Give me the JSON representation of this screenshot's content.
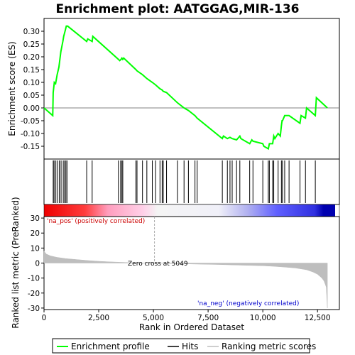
{
  "chart_data": [
    {
      "type": "line",
      "title": "Enrichment plot: AATGGAG,MIR-136",
      "ylabel": "Enrichment score (ES)",
      "ylim": [
        -0.2,
        0.35
      ],
      "yticks": [
        0.3,
        0.25,
        0.2,
        0.15,
        0.1,
        0.05,
        0.0,
        -0.05,
        -0.1,
        -0.15
      ],
      "ytick_labels": [
        "0.30",
        "0.25",
        "0.20",
        "0.15",
        "0.10",
        "0.05",
        "0.00",
        "-0.05",
        "-0.10",
        "-0.15"
      ],
      "xlim": [
        0,
        13500
      ],
      "grid": false,
      "series": [
        {
          "name": "Enrichment profile",
          "color": "#00ff00",
          "x": [
            0,
            400,
            420,
            470,
            530,
            600,
            680,
            770,
            860,
            900,
            960,
            1020,
            1080,
            1950,
            2000,
            2200,
            2230,
            3400,
            3460,
            3520,
            3560,
            3600,
            3640,
            4200,
            4250,
            4500,
            4700,
            4950,
            5100,
            5300,
            5400,
            5450,
            5600,
            6100,
            6400,
            6600,
            6900,
            7000,
            8150,
            8200,
            8380,
            8500,
            8600,
            8800,
            8950,
            9000,
            9400,
            9500,
            9550,
            10000,
            10050,
            10250,
            10300,
            10450,
            10500,
            10550,
            10700,
            10800,
            10850,
            10880,
            10900,
            11000,
            11200,
            11700,
            11750,
            11950,
            12000,
            12400,
            12450,
            12950
          ],
          "y": [
            0.0,
            -0.03,
            0.06,
            0.1,
            0.095,
            0.13,
            0.16,
            0.22,
            0.26,
            0.28,
            0.3,
            0.32,
            0.32,
            0.26,
            0.27,
            0.26,
            0.28,
            0.19,
            0.185,
            0.19,
            0.195,
            0.19,
            0.195,
            0.15,
            0.145,
            0.13,
            0.115,
            0.1,
            0.09,
            0.075,
            0.07,
            0.065,
            0.06,
            0.02,
            0.0,
            -0.01,
            -0.03,
            -0.04,
            -0.12,
            -0.11,
            -0.12,
            -0.115,
            -0.12,
            -0.125,
            -0.11,
            -0.12,
            -0.14,
            -0.125,
            -0.13,
            -0.14,
            -0.15,
            -0.16,
            -0.14,
            -0.14,
            -0.11,
            -0.12,
            -0.1,
            -0.11,
            -0.07,
            -0.05,
            -0.05,
            -0.03,
            -0.03,
            -0.06,
            -0.03,
            -0.04,
            0.0,
            -0.03,
            0.04,
            0.0
          ]
        }
      ]
    },
    {
      "type": "scatter",
      "title": "",
      "xlim": [
        0,
        13500
      ],
      "series": [
        {
          "name": "Hits",
          "x": [
            420,
            460,
            540,
            620,
            700,
            780,
            880,
            940,
            1000,
            1050,
            1950,
            2200,
            3400,
            3500,
            3560,
            3600,
            4200,
            4250,
            4500,
            4700,
            4950,
            5100,
            5300,
            5400,
            5450,
            5600,
            6100,
            6400,
            6600,
            6900,
            7000,
            8150,
            8380,
            8500,
            8600,
            8800,
            8950,
            9400,
            9550,
            10000,
            10250,
            10300,
            10450,
            10500,
            10700,
            10850,
            10900,
            11000,
            11200,
            11700,
            11950,
            12400
          ]
        }
      ]
    },
    {
      "type": "area",
      "title": "",
      "xlabel": "Rank in Ordered Dataset",
      "ylabel": "Ranked list metric (PreRanked)",
      "xlim": [
        0,
        13500
      ],
      "ylim": [
        -31,
        31
      ],
      "xticks": [
        0,
        2500,
        5000,
        7500,
        10000,
        12500
      ],
      "xtick_labels": [
        "0",
        "2,500",
        "5,000",
        "7,500",
        "10,000",
        "12,500"
      ],
      "yticks": [
        30,
        20,
        10,
        0,
        -10,
        -20,
        -30
      ],
      "ytick_labels": [
        "30",
        "20",
        "10",
        "0",
        "-10",
        "-20",
        "-30"
      ],
      "grid": false,
      "series": [
        {
          "name": "Ranking metric scores",
          "color": "#bebebe",
          "x": [
            0,
            100,
            300,
            600,
            1000,
            1500,
            2000,
            2500,
            3000,
            3500,
            4000,
            4500,
            5049,
            5500,
            6000,
            7000,
            8000,
            9000,
            10000,
            10500,
            11000,
            11500,
            12000,
            12300,
            12500,
            12700,
            12800,
            12900,
            12950
          ],
          "y": [
            8.0,
            6.0,
            4.8,
            3.8,
            3.0,
            2.3,
            1.7,
            1.2,
            0.8,
            0.5,
            0.3,
            0.1,
            0.0,
            -0.2,
            -0.4,
            -0.7,
            -1.0,
            -1.4,
            -1.8,
            -2.2,
            -2.7,
            -3.3,
            -4.5,
            -6.0,
            -7.5,
            -10.0,
            -12.0,
            -16.0,
            -30.0
          ]
        }
      ],
      "annotations": {
        "zero_cross": "Zero cross at 5049",
        "positive": "'na_pos' (positively correlated)",
        "negative": "'na_neg' (negatively correlated)"
      }
    }
  ],
  "legend": {
    "items": [
      {
        "label": "Enrichment profile",
        "color": "#00ff00"
      },
      {
        "label": "Hits",
        "color": "#000000"
      },
      {
        "label": "Ranking metric scores",
        "color": "#bebebe"
      }
    ]
  }
}
